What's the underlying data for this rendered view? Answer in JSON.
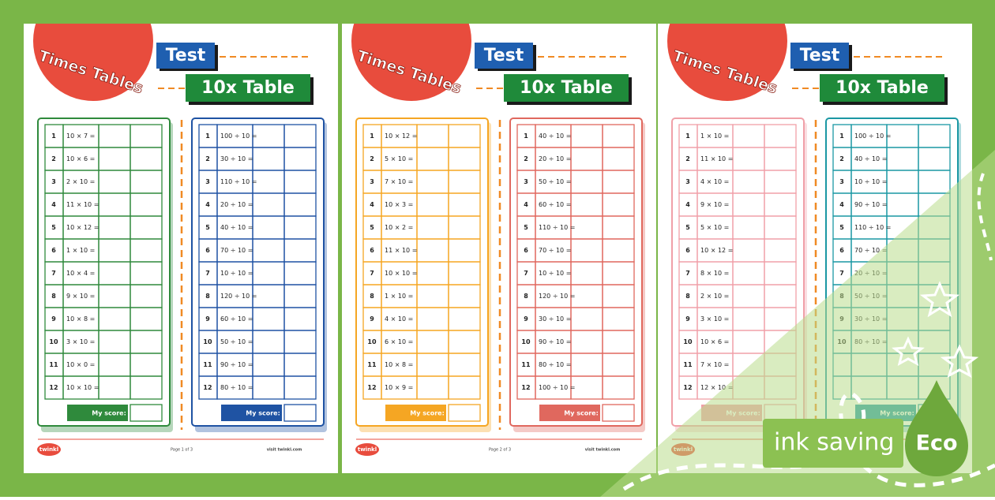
{
  "row_numbers": [
    "1",
    "2",
    "3",
    "4",
    "5",
    "6",
    "7",
    "8",
    "9",
    "10",
    "11",
    "12"
  ],
  "pages": [
    {
      "title": "Times Tables",
      "badge": "Test",
      "subtitle": "10x Table",
      "score_label": "My score:",
      "tables": [
        {
          "color": "#2f8a3c",
          "questions": [
            "10 × 7 =",
            "10 × 6 =",
            "2 × 10 =",
            "11 × 10 =",
            "10 × 12 =",
            "1 × 10 =",
            "10 × 4 =",
            "9 × 10 =",
            "10 × 8 =",
            "3 × 10 =",
            "10 × 0 =",
            "10 × 10 ="
          ]
        },
        {
          "color": "#1f53a3",
          "questions": [
            "100 ÷ 10 =",
            "30 ÷ 10 =",
            "110 ÷ 10 =",
            "20 ÷ 10 =",
            "40 ÷ 10 =",
            "70 ÷ 10 =",
            "10 ÷ 10 =",
            "120 ÷ 10 =",
            "60 ÷ 10 =",
            "50 ÷ 10 =",
            "90 ÷ 10 =",
            "80 ÷ 10 ="
          ]
        }
      ],
      "footer": {
        "logo": "twinkl",
        "page": "Page 1 of 3",
        "site": "visit twinkl.com"
      }
    },
    {
      "title": "Times Tables",
      "badge": "Test",
      "subtitle": "10x Table",
      "score_label": "My score:",
      "tables": [
        {
          "color": "#f5a623",
          "questions": [
            "10 × 12 =",
            "5 × 10 =",
            "7 × 10 =",
            "10 × 3 =",
            "10 × 2 =",
            "11 × 10 =",
            "10 × 10 =",
            "1 × 10 =",
            "4 × 10 =",
            "6 × 10 =",
            "10 × 8 =",
            "10 × 9 ="
          ]
        },
        {
          "color": "#e0685e",
          "questions": [
            "40 ÷ 10 =",
            "20 ÷ 10 =",
            "50 ÷ 10 =",
            "60 ÷ 10 =",
            "110 ÷ 10 =",
            "70 ÷ 10 =",
            "10 ÷ 10 =",
            "120 ÷ 10 =",
            "30 ÷ 10 =",
            "90 ÷ 10 =",
            "80 ÷ 10 =",
            "100 ÷ 10 ="
          ]
        }
      ],
      "footer": {
        "logo": "twinkl",
        "page": "Page 2 of 3",
        "site": "visit twinkl.com"
      }
    },
    {
      "title": "Times Tables",
      "badge": "Test",
      "subtitle": "10x Table",
      "score_label": "My score:",
      "tables": [
        {
          "color": "#f0a0a8",
          "questions": [
            "1 × 10 =",
            "11 × 10 =",
            "4 × 10 =",
            "9 × 10 =",
            "5 × 10 =",
            "10 × 12 =",
            "8 × 10 =",
            "2 × 10 =",
            "3 × 10 =",
            "10 × 6 =",
            "7 × 10 =",
            "12 × 10 ="
          ]
        },
        {
          "color": "#1b98a4",
          "questions": [
            "100 ÷ 10 =",
            "40 ÷ 10 =",
            "10 ÷ 10 =",
            "90 ÷ 10 =",
            "110 ÷ 10 =",
            "70 ÷ 10 =",
            "20 ÷ 10 =",
            "50 ÷ 10 =",
            "30 ÷ 10 =",
            "80 ÷ 10 =",
            null,
            null
          ]
        }
      ],
      "footer": {
        "logo": "twinkl"
      }
    }
  ],
  "eco": {
    "text": "ink saving",
    "badge": "Eco"
  }
}
